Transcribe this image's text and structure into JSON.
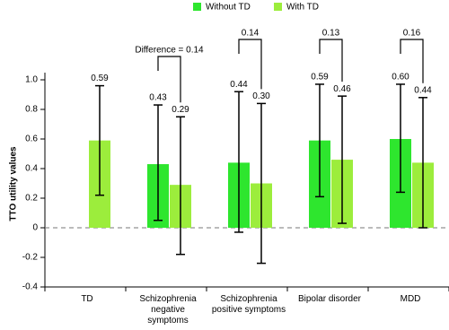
{
  "chart_data": {
    "type": "bar",
    "y_label": "TTO utility values",
    "categories": [
      "TD",
      "Schizophrenia negative symptoms",
      "Schizophrenia positive symptoms",
      "Bipolar disorder",
      "MDD"
    ],
    "series": [
      {
        "name": "Without TD",
        "color": "#2ee62e",
        "values": [
          null,
          0.43,
          0.44,
          0.59,
          0.6
        ],
        "value_labels": [
          null,
          "0.43",
          "0.44",
          "0.59",
          "0.60"
        ],
        "lower": [
          null,
          0.05,
          -0.03,
          0.21,
          0.24
        ],
        "upper": [
          null,
          0.83,
          0.92,
          0.97,
          0.97
        ]
      },
      {
        "name": "With TD",
        "color": "#9ced3c",
        "values": [
          0.59,
          0.29,
          0.3,
          0.46,
          0.44
        ],
        "value_labels": [
          "0.59",
          "0.29",
          "0.30",
          "0.46",
          "0.44"
        ],
        "lower": [
          0.22,
          -0.18,
          -0.24,
          0.03,
          0.0
        ],
        "upper": [
          0.96,
          0.75,
          0.84,
          0.89,
          0.88
        ]
      }
    ],
    "annotations": [
      "Difference = 0.14",
      "0.14",
      "0.13",
      "0.16"
    ],
    "ylim": [
      -0.4,
      1.0
    ],
    "yticks": [
      -0.4,
      -0.2,
      0,
      0.2,
      0.4,
      0.6,
      0.8,
      {
        "value": 1.0,
        "label": "1.0"
      }
    ]
  }
}
